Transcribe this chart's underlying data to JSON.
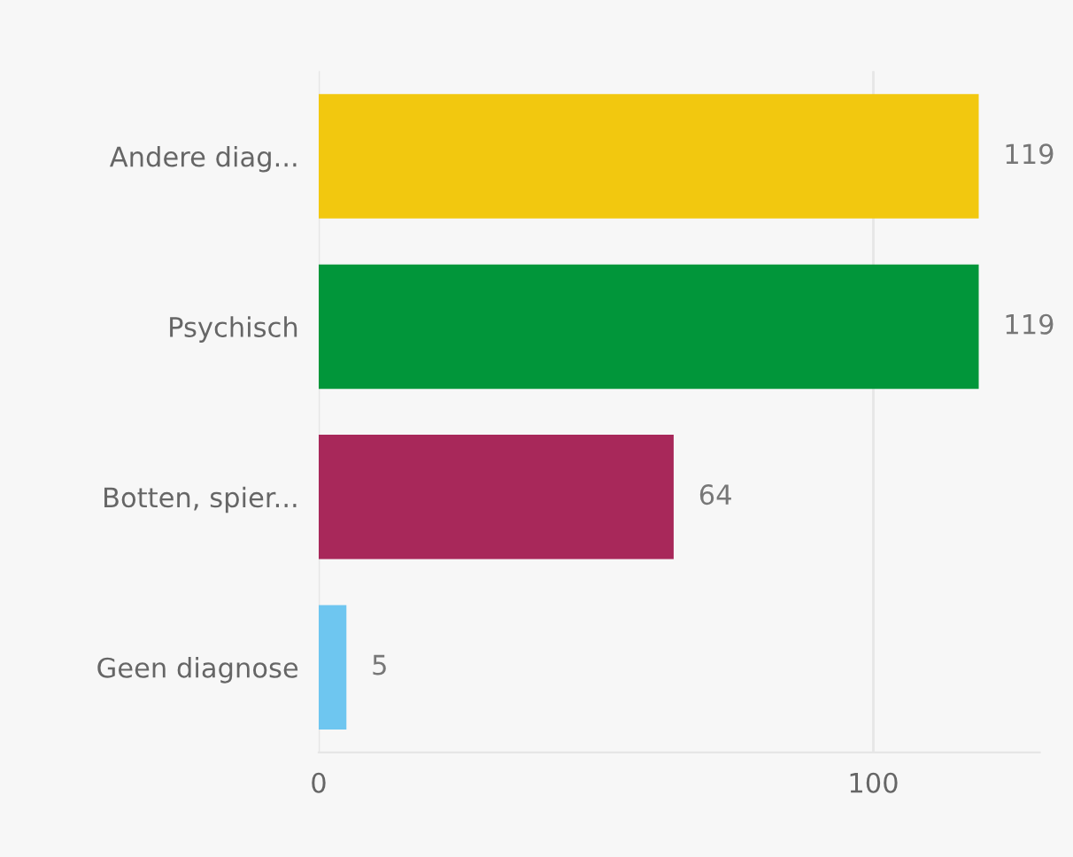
{
  "chart_data": {
    "type": "bar",
    "orientation": "horizontal",
    "categories": [
      "Andere diag...",
      "Psychisch",
      "Botten, spier...",
      "Geen diagnose"
    ],
    "values": [
      119,
      119,
      64,
      5
    ],
    "colors": [
      "#f2c80f",
      "#01963a",
      "#a8285a",
      "#6ec6f0"
    ],
    "xlim": [
      0,
      130
    ],
    "xticks": [
      0,
      100
    ],
    "grid": "x",
    "data_labels": true
  }
}
